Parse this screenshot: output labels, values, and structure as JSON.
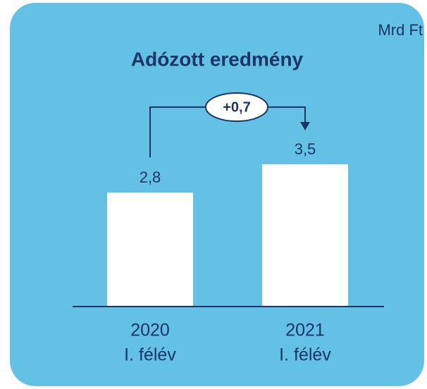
{
  "chart_data": {
    "type": "bar",
    "title": "Adózott eredmény",
    "unit": "Mrd Ft",
    "categories": [
      [
        "2020",
        "I. félév"
      ],
      [
        "2021",
        "I. félév"
      ]
    ],
    "values": [
      2.8,
      3.5
    ],
    "value_labels": [
      "2,8",
      "3,5"
    ],
    "color": "#ffffff",
    "annotation": "+0,7"
  }
}
